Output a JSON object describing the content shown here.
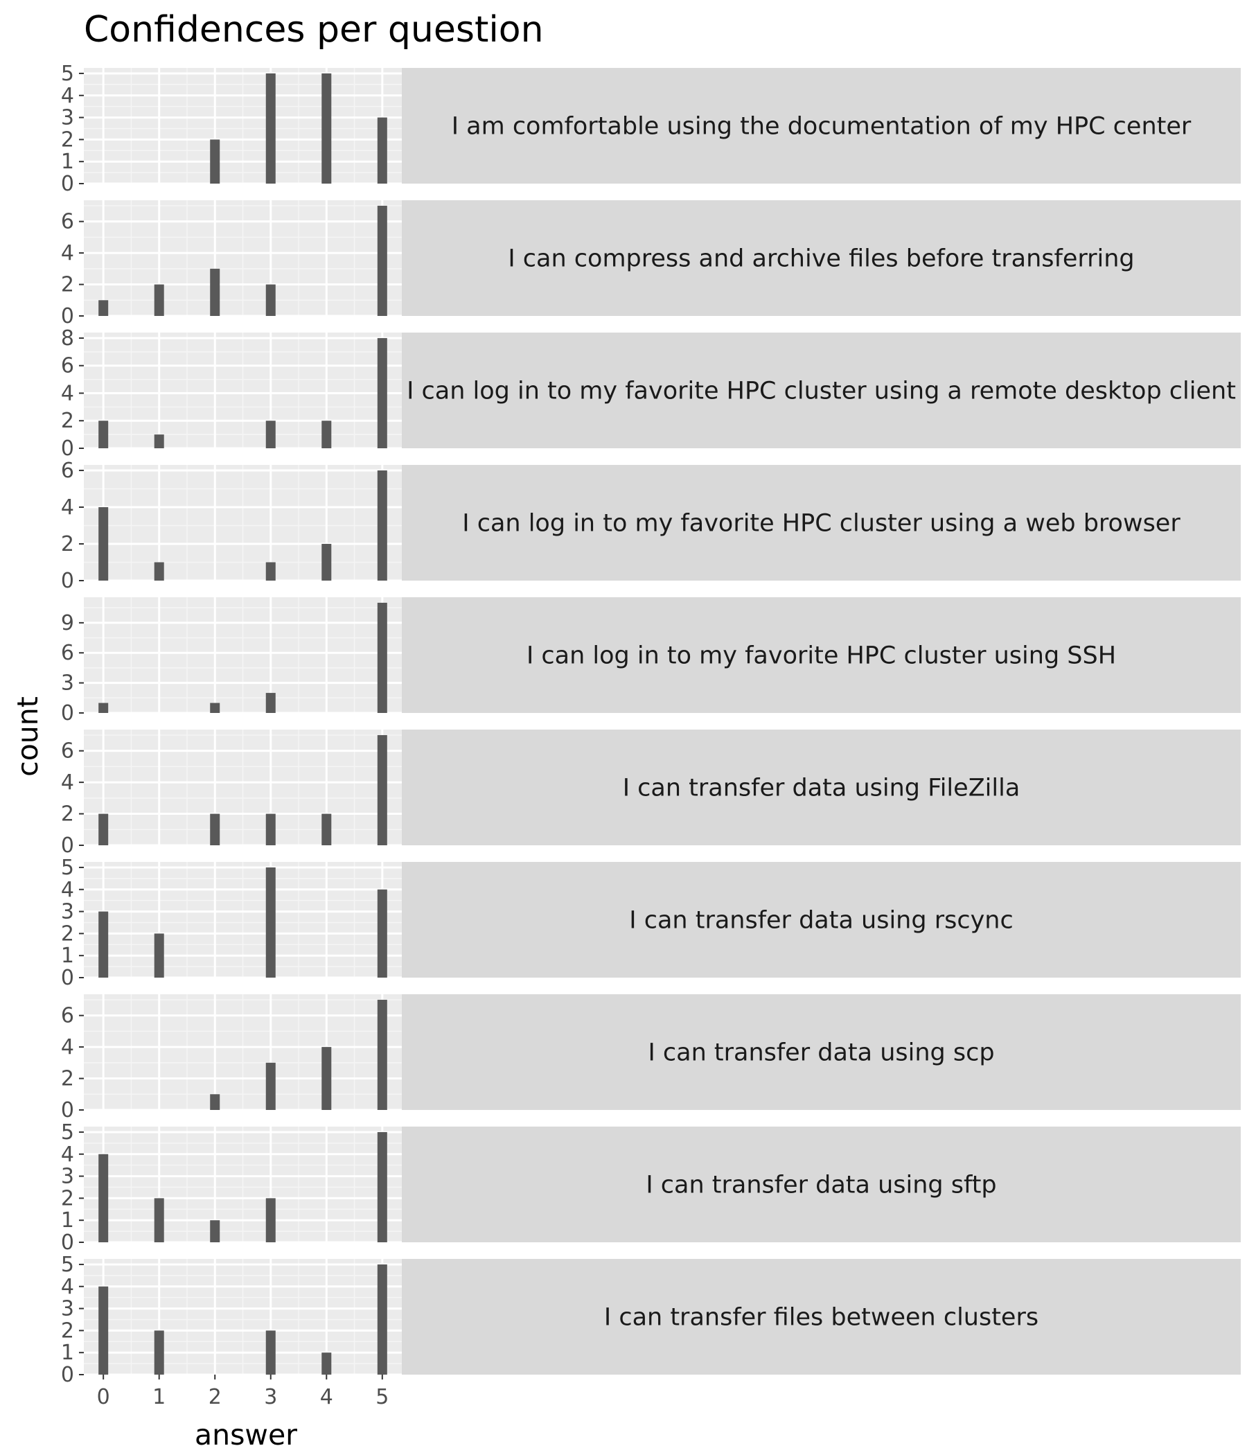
{
  "chart_data": {
    "type": "bar",
    "title": "Confidences per question",
    "xlabel": "answer",
    "ylabel": "count",
    "x": [
      0,
      1,
      2,
      3,
      4,
      5
    ],
    "xlim": [
      -0.35,
      5.35
    ],
    "panels": [
      {
        "label": "I am comfortable using the documentation of my HPC center",
        "values": [
          0,
          0,
          2,
          5,
          5,
          3
        ],
        "ylim": [
          0,
          5.25
        ],
        "yticks": [
          0,
          1,
          2,
          3,
          4,
          5
        ]
      },
      {
        "label": "I can compress and archive files before transferring",
        "values": [
          1,
          2,
          3,
          2,
          0,
          7
        ],
        "ylim": [
          0,
          7.35
        ],
        "yticks": [
          0,
          2,
          4,
          6
        ]
      },
      {
        "label": "I can log in to my favorite HPC cluster using a remote desktop client",
        "values": [
          2,
          1,
          0,
          2,
          2,
          8
        ],
        "ylim": [
          0,
          8.4
        ],
        "yticks": [
          0,
          2,
          4,
          6,
          8
        ]
      },
      {
        "label": "I can log in to my favorite HPC cluster using a web browser",
        "values": [
          4,
          1,
          0,
          1,
          2,
          6
        ],
        "ylim": [
          0,
          6.3
        ],
        "yticks": [
          0,
          2,
          4,
          6
        ]
      },
      {
        "label": "I can log in to my favorite HPC cluster using SSH",
        "values": [
          1,
          0,
          1,
          2,
          0,
          11
        ],
        "ylim": [
          0,
          11.55
        ],
        "yticks": [
          0,
          3,
          6,
          9
        ]
      },
      {
        "label": "I can transfer data using FileZilla",
        "values": [
          2,
          0,
          2,
          2,
          2,
          7
        ],
        "ylim": [
          0,
          7.35
        ],
        "yticks": [
          0,
          2,
          4,
          6
        ]
      },
      {
        "label": "I can transfer data using rscync",
        "values": [
          3,
          2,
          0,
          5,
          0,
          4
        ],
        "ylim": [
          0,
          5.25
        ],
        "yticks": [
          0,
          1,
          2,
          3,
          4,
          5
        ]
      },
      {
        "label": "I can transfer data using scp",
        "values": [
          0,
          0,
          1,
          3,
          4,
          7
        ],
        "ylim": [
          0,
          7.35
        ],
        "yticks": [
          0,
          2,
          4,
          6
        ]
      },
      {
        "label": "I can transfer data using sftp",
        "values": [
          4,
          2,
          1,
          2,
          0,
          5
        ],
        "ylim": [
          0,
          5.25
        ],
        "yticks": [
          0,
          1,
          2,
          3,
          4,
          5
        ]
      },
      {
        "label": "I can transfer files between clusters",
        "values": [
          4,
          2,
          0,
          2,
          1,
          5
        ],
        "ylim": [
          0,
          5.25
        ],
        "yticks": [
          0,
          1,
          2,
          3,
          4,
          5
        ]
      }
    ],
    "colors": {
      "bar": "#595959",
      "panel_background": "#ebebeb",
      "grid_major": "#ffffff",
      "grid_minor": "#f5f5f5",
      "strip_background": "#d9d9d9",
      "tick_text": "#4d4d4d",
      "tick_mark": "#333333"
    }
  }
}
